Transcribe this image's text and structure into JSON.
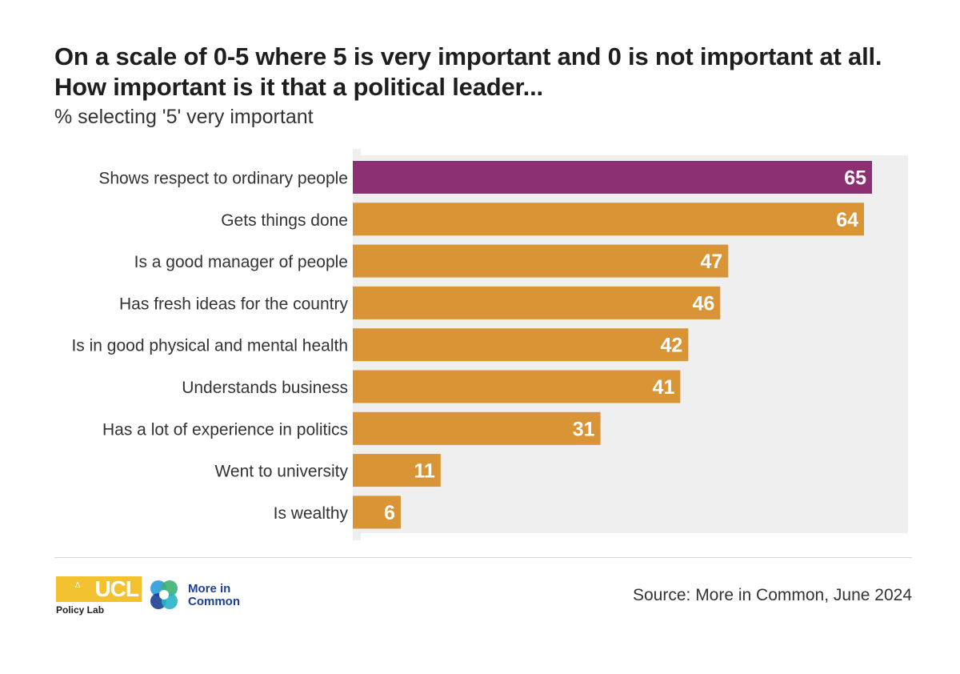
{
  "chart_data": {
    "type": "bar",
    "orientation": "horizontal",
    "title_lines": [
      "On a scale of 0-5 where 5 is very important and 0 is not important at all.",
      "How important is it that a political leader..."
    ],
    "subtitle": "% selecting '5' very important",
    "categories": [
      "Shows respect to ordinary people",
      "Gets things done",
      "Is a good manager of people",
      "Has fresh ideas for the country",
      "Is in good physical and mental health",
      "Understands business",
      "Has a lot of experience in politics",
      "Went to university",
      "Is wealthy"
    ],
    "values": [
      65,
      64,
      47,
      46,
      42,
      41,
      31,
      11,
      6
    ],
    "xlim": [
      0,
      65
    ],
    "highlight_index": 0,
    "colors": {
      "highlight": "#8c2f73",
      "bar": "#d89435",
      "background_panel": "#efefef",
      "axis": "#dddddd",
      "value_label": "#ffffff"
    },
    "grid": false,
    "legend": "none"
  },
  "footer": {
    "source": "Source: More in Common, June 2024",
    "ucl_logo_text": "UCL",
    "ucl_logo_mark": "∆",
    "ucl_sub_text": "Policy Lab",
    "mic_line1": "More in",
    "mic_line2": "Common"
  }
}
